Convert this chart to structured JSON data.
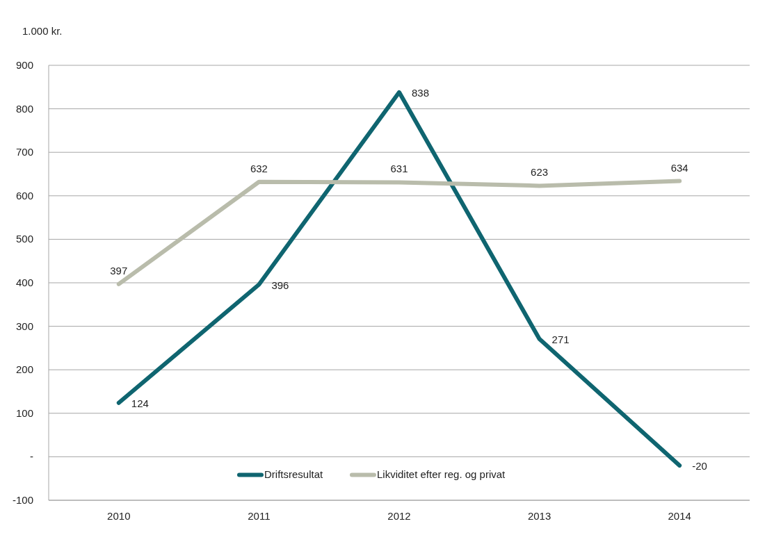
{
  "chart_data": {
    "type": "line",
    "ylabel": "1.000 kr.",
    "categories": [
      "2010",
      "2011",
      "2012",
      "2013",
      "2014"
    ],
    "series": [
      {
        "name": "Driftsresultat",
        "color": "#0f6570",
        "values": [
          124,
          396,
          838,
          271,
          -20
        ]
      },
      {
        "name": "Likviditet efter reg. og privat",
        "color": "#b9bcab",
        "values": [
          397,
          632,
          631,
          623,
          634
        ]
      }
    ],
    "ylim": [
      -100,
      900
    ],
    "yticks": [
      -100,
      {
        "value": 0,
        "label": "-"
      },
      100,
      200,
      300,
      400,
      500,
      600,
      700,
      800,
      900
    ],
    "grid": "y",
    "legend": "bottom",
    "data_labels": true,
    "marker": "none",
    "line_style": "solid"
  }
}
